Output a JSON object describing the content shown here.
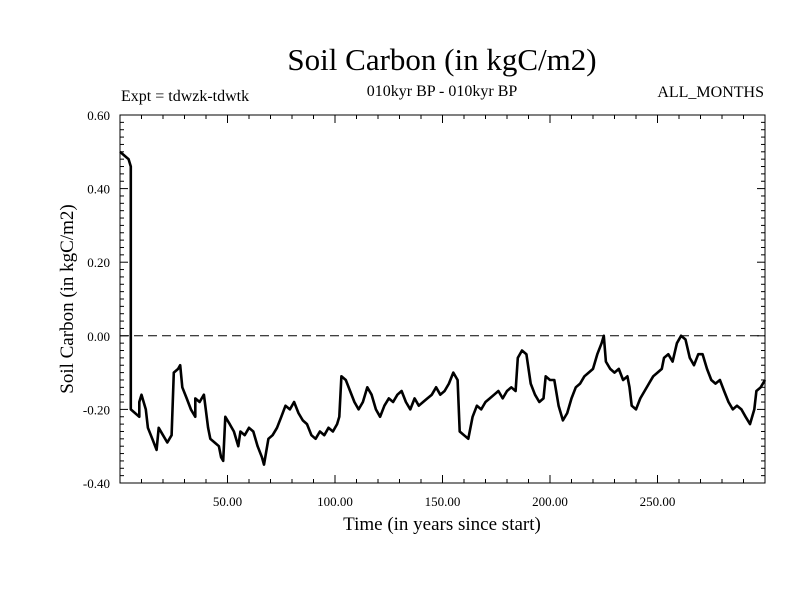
{
  "header": {
    "title": "Soil Carbon (in kgC/m2)",
    "subtitle": "010kyr BP - 010kyr BP",
    "expt": "Expt = tdwzk-tdwtk",
    "months": "ALL_MONTHS"
  },
  "chart_data": {
    "type": "line",
    "title": "Soil Carbon (in kgC/m2)",
    "xlabel": "Time (in years since start)",
    "ylabel": "Soil Carbon (in kgC/m2)",
    "xlim": [
      0,
      300
    ],
    "ylim": [
      -0.4,
      0.6
    ],
    "x_ticks": [
      50,
      100,
      150,
      200,
      250
    ],
    "x_tick_labels": [
      "50.00",
      "100.00",
      "150.00",
      "200.00",
      "250.00"
    ],
    "y_ticks": [
      -0.4,
      -0.2,
      0.0,
      0.2,
      0.4,
      0.6
    ],
    "y_tick_labels": [
      "-0.40",
      "-0.20",
      "0.00",
      "0.20",
      "0.40",
      "0.60"
    ],
    "reference_line": {
      "y": 0.0,
      "style": "dashed"
    },
    "grid": false,
    "series": [
      {
        "color": "#000000",
        "points": [
          [
            0,
            0.5
          ],
          [
            2,
            0.49
          ],
          [
            4,
            0.48
          ],
          [
            5,
            0.46
          ],
          [
            5,
            -0.2
          ],
          [
            7,
            -0.21
          ],
          [
            9,
            -0.22
          ],
          [
            9,
            -0.18
          ],
          [
            10,
            -0.16
          ],
          [
            12,
            -0.2
          ],
          [
            13,
            -0.25
          ],
          [
            15,
            -0.28
          ],
          [
            17,
            -0.31
          ],
          [
            18,
            -0.25
          ],
          [
            20,
            -0.27
          ],
          [
            22,
            -0.29
          ],
          [
            24,
            -0.27
          ],
          [
            25,
            -0.1
          ],
          [
            27,
            -0.09
          ],
          [
            28,
            -0.08
          ],
          [
            29,
            -0.14
          ],
          [
            31,
            -0.17
          ],
          [
            33,
            -0.2
          ],
          [
            35,
            -0.22
          ],
          [
            35,
            -0.17
          ],
          [
            37,
            -0.18
          ],
          [
            39,
            -0.16
          ],
          [
            41,
            -0.25
          ],
          [
            42,
            -0.28
          ],
          [
            44,
            -0.29
          ],
          [
            46,
            -0.3
          ],
          [
            47,
            -0.33
          ],
          [
            48,
            -0.34
          ],
          [
            49,
            -0.22
          ],
          [
            51,
            -0.24
          ],
          [
            53,
            -0.26
          ],
          [
            55,
            -0.3
          ],
          [
            56,
            -0.26
          ],
          [
            58,
            -0.27
          ],
          [
            60,
            -0.25
          ],
          [
            62,
            -0.26
          ],
          [
            64,
            -0.3
          ],
          [
            66,
            -0.33
          ],
          [
            67,
            -0.35
          ],
          [
            69,
            -0.28
          ],
          [
            71,
            -0.27
          ],
          [
            73,
            -0.25
          ],
          [
            75,
            -0.22
          ],
          [
            77,
            -0.19
          ],
          [
            79,
            -0.2
          ],
          [
            81,
            -0.18
          ],
          [
            83,
            -0.21
          ],
          [
            85,
            -0.23
          ],
          [
            87,
            -0.24
          ],
          [
            89,
            -0.27
          ],
          [
            91,
            -0.28
          ],
          [
            93,
            -0.26
          ],
          [
            95,
            -0.27
          ],
          [
            97,
            -0.25
          ],
          [
            99,
            -0.26
          ],
          [
            101,
            -0.24
          ],
          [
            102,
            -0.22
          ],
          [
            103,
            -0.11
          ],
          [
            105,
            -0.12
          ],
          [
            107,
            -0.15
          ],
          [
            109,
            -0.18
          ],
          [
            111,
            -0.2
          ],
          [
            113,
            -0.18
          ],
          [
            115,
            -0.14
          ],
          [
            117,
            -0.16
          ],
          [
            119,
            -0.2
          ],
          [
            121,
            -0.22
          ],
          [
            123,
            -0.19
          ],
          [
            125,
            -0.17
          ],
          [
            127,
            -0.18
          ],
          [
            129,
            -0.16
          ],
          [
            131,
            -0.15
          ],
          [
            133,
            -0.18
          ],
          [
            135,
            -0.2
          ],
          [
            137,
            -0.17
          ],
          [
            139,
            -0.19
          ],
          [
            141,
            -0.18
          ],
          [
            143,
            -0.17
          ],
          [
            145,
            -0.16
          ],
          [
            147,
            -0.14
          ],
          [
            149,
            -0.16
          ],
          [
            151,
            -0.15
          ],
          [
            153,
            -0.13
          ],
          [
            155,
            -0.1
          ],
          [
            157,
            -0.12
          ],
          [
            158,
            -0.26
          ],
          [
            160,
            -0.27
          ],
          [
            162,
            -0.28
          ],
          [
            164,
            -0.22
          ],
          [
            166,
            -0.19
          ],
          [
            168,
            -0.2
          ],
          [
            170,
            -0.18
          ],
          [
            172,
            -0.17
          ],
          [
            174,
            -0.16
          ],
          [
            176,
            -0.15
          ],
          [
            178,
            -0.17
          ],
          [
            180,
            -0.15
          ],
          [
            182,
            -0.14
          ],
          [
            184,
            -0.15
          ],
          [
            185,
            -0.06
          ],
          [
            187,
            -0.04
          ],
          [
            189,
            -0.05
          ],
          [
            191,
            -0.13
          ],
          [
            193,
            -0.16
          ],
          [
            195,
            -0.18
          ],
          [
            197,
            -0.17
          ],
          [
            198,
            -0.11
          ],
          [
            200,
            -0.12
          ],
          [
            202,
            -0.12
          ],
          [
            204,
            -0.19
          ],
          [
            206,
            -0.23
          ],
          [
            208,
            -0.21
          ],
          [
            210,
            -0.17
          ],
          [
            212,
            -0.14
          ],
          [
            214,
            -0.13
          ],
          [
            216,
            -0.11
          ],
          [
            218,
            -0.1
          ],
          [
            220,
            -0.09
          ],
          [
            222,
            -0.05
          ],
          [
            224,
            -0.02
          ],
          [
            225,
            0.0
          ],
          [
            226,
            -0.07
          ],
          [
            228,
            -0.09
          ],
          [
            230,
            -0.1
          ],
          [
            232,
            -0.09
          ],
          [
            234,
            -0.12
          ],
          [
            236,
            -0.11
          ],
          [
            237,
            -0.14
          ],
          [
            238,
            -0.19
          ],
          [
            240,
            -0.2
          ],
          [
            242,
            -0.17
          ],
          [
            244,
            -0.15
          ],
          [
            246,
            -0.13
          ],
          [
            248,
            -0.11
          ],
          [
            250,
            -0.1
          ],
          [
            252,
            -0.09
          ],
          [
            253,
            -0.06
          ],
          [
            255,
            -0.05
          ],
          [
            257,
            -0.07
          ],
          [
            259,
            -0.02
          ],
          [
            261,
            0.0
          ],
          [
            263,
            -0.01
          ],
          [
            265,
            -0.06
          ],
          [
            267,
            -0.08
          ],
          [
            269,
            -0.05
          ],
          [
            271,
            -0.05
          ],
          [
            273,
            -0.09
          ],
          [
            275,
            -0.12
          ],
          [
            277,
            -0.13
          ],
          [
            279,
            -0.12
          ],
          [
            281,
            -0.15
          ],
          [
            283,
            -0.18
          ],
          [
            285,
            -0.2
          ],
          [
            287,
            -0.19
          ],
          [
            289,
            -0.2
          ],
          [
            291,
            -0.22
          ],
          [
            293,
            -0.24
          ],
          [
            295,
            -0.2
          ],
          [
            296,
            -0.15
          ],
          [
            298,
            -0.14
          ],
          [
            300,
            -0.12
          ]
        ]
      }
    ]
  }
}
